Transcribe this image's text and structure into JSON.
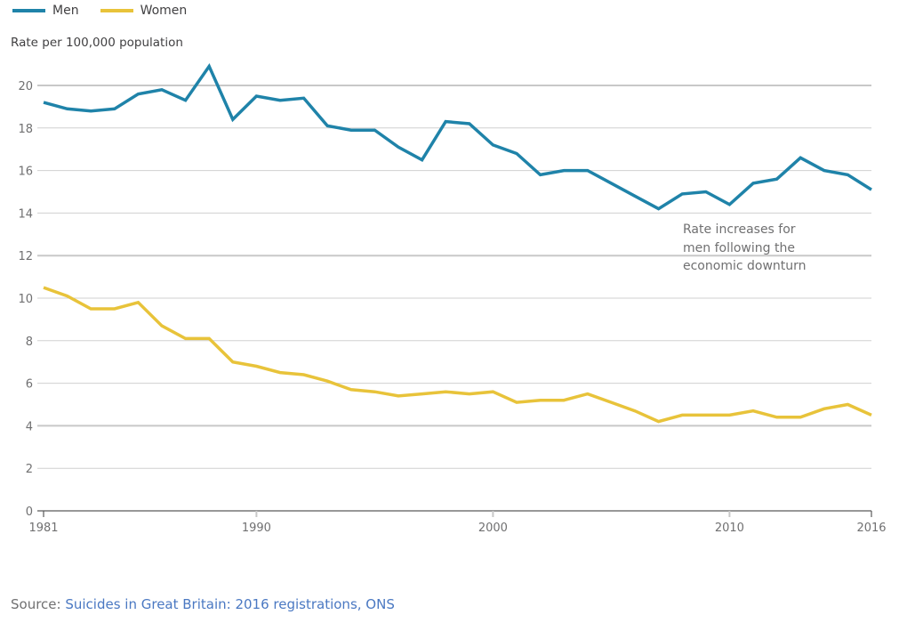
{
  "chart_data": {
    "type": "line",
    "title": "",
    "xlabel": "",
    "ylabel": "Rate per 100,000 population",
    "x": [
      1981,
      1982,
      1983,
      1984,
      1985,
      1986,
      1987,
      1988,
      1989,
      1990,
      1991,
      1992,
      1993,
      1994,
      1995,
      1996,
      1997,
      1998,
      1999,
      2000,
      2001,
      2002,
      2003,
      2004,
      2005,
      2006,
      2007,
      2008,
      2009,
      2010,
      2011,
      2012,
      2013,
      2014,
      2015,
      2016
    ],
    "xlim": [
      1981,
      2016
    ],
    "ylim": [
      0,
      21
    ],
    "x_ticks": [
      1981,
      1990,
      2000,
      2010,
      2016
    ],
    "x_tick_labels": [
      "1981",
      "1990",
      "2000",
      "2010",
      "2016"
    ],
    "y_ticks": [
      0,
      2,
      4,
      6,
      8,
      10,
      12,
      14,
      16,
      18,
      20
    ],
    "y_tick_labels": [
      "0",
      "2",
      "4",
      "6",
      "8",
      "10",
      "12",
      "14",
      "16",
      "18",
      "20"
    ],
    "emphasized_gridlines": [
      4,
      12,
      20
    ],
    "grid": true,
    "legend_position": "top-left",
    "series": [
      {
        "name": "Men",
        "color": "#1f83a9",
        "values": [
          19.2,
          18.9,
          18.8,
          18.9,
          19.6,
          19.8,
          19.3,
          20.9,
          18.4,
          19.5,
          19.3,
          19.4,
          18.1,
          17.9,
          17.9,
          17.1,
          16.5,
          18.3,
          18.2,
          17.2,
          16.8,
          15.8,
          16.0,
          16.0,
          15.4,
          14.8,
          14.2,
          14.9,
          15.0,
          14.4,
          15.4,
          15.6,
          16.6,
          16.0,
          15.8,
          15.1
        ]
      },
      {
        "name": "Women",
        "color": "#e8c33a",
        "values": [
          10.5,
          10.1,
          9.5,
          9.5,
          9.8,
          8.7,
          8.1,
          8.1,
          7.0,
          6.8,
          6.5,
          6.4,
          6.1,
          5.7,
          5.6,
          5.4,
          5.5,
          5.6,
          5.5,
          5.6,
          5.1,
          5.2,
          5.2,
          5.5,
          5.1,
          4.7,
          4.2,
          4.5,
          4.5,
          4.5,
          4.7,
          4.4,
          4.4,
          4.8,
          5.0,
          4.5
        ]
      }
    ],
    "annotations": [
      {
        "text": "Rate increases for\nmen following the\neconomic downturn",
        "anchor_x": 2008,
        "anchor_y": 12.5
      }
    ]
  },
  "legend": {
    "items": [
      {
        "label": "Men",
        "color": "#1f83a9"
      },
      {
        "label": "Women",
        "color": "#e8c33a"
      }
    ]
  },
  "axis": {
    "ylabel": "Rate per 100,000 population"
  },
  "annotation": {
    "text": "Rate increases for\nmen following the\neconomic downturn"
  },
  "source": {
    "prefix": "Source: ",
    "link_text": "Suicides in Great Britain: 2016 registrations, ONS"
  }
}
